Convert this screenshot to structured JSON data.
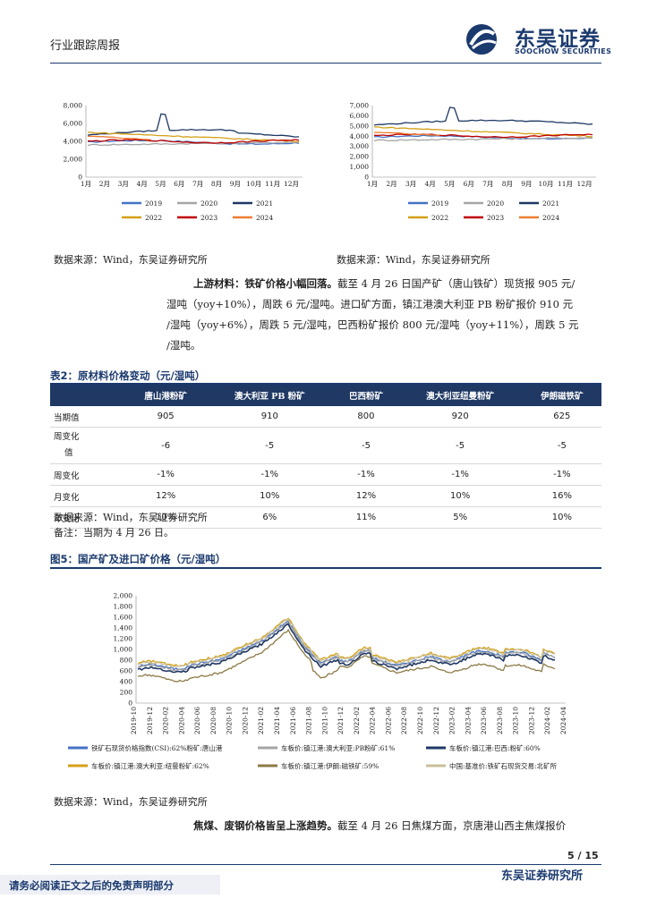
{
  "header": {
    "title": "行业跟踪周报",
    "brand_cn": "东吴证券",
    "brand_en": "SOOCHOW SECURITIES"
  },
  "chart_left": {
    "x_labels": [
      "1月",
      "2月",
      "3月",
      "4月",
      "5月",
      "6月",
      "7月",
      "8月",
      "9月",
      "10月",
      "11月",
      "12月"
    ],
    "y_ticks": [
      "8,000",
      "6,000",
      "4,000",
      "2,000",
      "0"
    ],
    "legend": [
      "2019",
      "2020",
      "2021",
      "2022",
      "2023",
      "2024"
    ],
    "source": "数据来源：Wind，东吴证券研究所"
  },
  "chart_right": {
    "x_labels": [
      "1月",
      "2月",
      "3月",
      "4月",
      "5月",
      "6月",
      "7月",
      "8月",
      "9月",
      "10月",
      "11月",
      "12月"
    ],
    "y_ticks": [
      "7,000",
      "6,000",
      "5,000",
      "4,000",
      "3,000",
      "2,000",
      "1,000",
      "0"
    ],
    "legend": [
      "2019",
      "2020",
      "2021",
      "2022",
      "2023",
      "2024"
    ],
    "source": "数据来源：Wind，东吴证券研究所"
  },
  "para1": {
    "bold": "上游材料：铁矿价格小幅回落。",
    "l1": "截至 4 月 26 日国产矿（唐山铁矿）现货报 905 元/",
    "l2": "湿吨（yoy+10%），周跌 6 元/湿吨。进口矿方面，镇江港澳大利亚 PB 粉矿报价 910 元",
    "l3": "/湿吨（yoy+6%），周跌 5 元/湿吨，巴西粉矿报价 800 元/湿吨（yoy+11%），周跌 5 元",
    "l4": "/湿吨。"
  },
  "table2": {
    "caption": "表2：原材料价格变动（元/湿吨）",
    "headers": [
      "",
      "唐山港粉矿",
      "澳大利亚 PB 粉矿",
      "巴西粉矿",
      "澳大利亚纽曼粉矿",
      "伊朗磁铁矿"
    ],
    "rows": [
      [
        "当期值",
        "905",
        "910",
        "800",
        "920",
        "625"
      ],
      [
        "周变化值",
        "-6",
        "-5",
        "-5",
        "-5",
        "-5"
      ],
      [
        "周变化",
        "-1%",
        "-1%",
        "-1%",
        "-1%",
        "-1%"
      ],
      [
        "月变化",
        "12%",
        "10%",
        "12%",
        "10%",
        "16%"
      ],
      [
        "年变化",
        "10%",
        "6%",
        "11%",
        "5%",
        "10%"
      ]
    ],
    "row2_label_l1": "周变化",
    "row2_label_l2": "值",
    "source": "数据来源：Wind，东吴证券研究所",
    "note": "备注：当期为 4 月 26 日。"
  },
  "figure5": {
    "caption": "图5：国产矿及进口矿价格（元/湿吨）",
    "y_ticks": [
      "2,000",
      "1,800",
      "1,600",
      "1,400",
      "1,200",
      "1,000",
      "800",
      "600",
      "400",
      "200",
      "0"
    ],
    "x_labels": [
      "2019-10",
      "2019-12",
      "2020-02",
      "2020-04",
      "2020-06",
      "2020-08",
      "2020-10",
      "2020-12",
      "2021-02",
      "2021-04",
      "2021-06",
      "2021-08",
      "2021-10",
      "2021-12",
      "2022-02",
      "2022-04",
      "2022-06",
      "2022-08",
      "2022-10",
      "2022-12",
      "2023-02",
      "2023-04",
      "2023-06",
      "2023-08",
      "2023-10",
      "2023-12",
      "2024-02",
      "2024-04"
    ],
    "legend": [
      {
        "name": "铁矿石现货价格指数(CSI):62%粉矿:唐山港",
        "color": "#4472c4"
      },
      {
        "name": "车板价:镇江港:澳大利亚:PB粉矿:61%",
        "color": "#a5a5a5"
      },
      {
        "name": "车板价:镇江港:巴西:粉矿:60%",
        "color": "#1f3864"
      },
      {
        "name": "车板价:镇江港:澳大利亚:纽曼粉矿:62%",
        "color": "#d4a017"
      },
      {
        "name": "车板价:镇江港:伊朗:磁铁矿:59%",
        "color": "#8c7a45"
      },
      {
        "name": "中国:基准价:铁矿石现货交易:北矿所",
        "color": "#c8bf9a"
      }
    ],
    "source": "数据来源：Wind，东吴证券研究所"
  },
  "para2": {
    "bold": "焦煤、废钢价格皆呈上涨趋势。",
    "text": "截至 4 月 26 日焦煤方面，京唐港山西主焦煤报价"
  },
  "footer": {
    "page": "5 / 15",
    "disclaimer": "请务必阅读正文之后的免责声明部分",
    "org": "东吴证券研究所"
  },
  "colors": {
    "brand": "#1b3a6e",
    "s2019": "#4472c4",
    "s2020": "#a5a5a5",
    "s2021": "#1f3864",
    "s2022": "#d4a017",
    "s2023": "#c00000",
    "s2024": "#ed7d31"
  }
}
